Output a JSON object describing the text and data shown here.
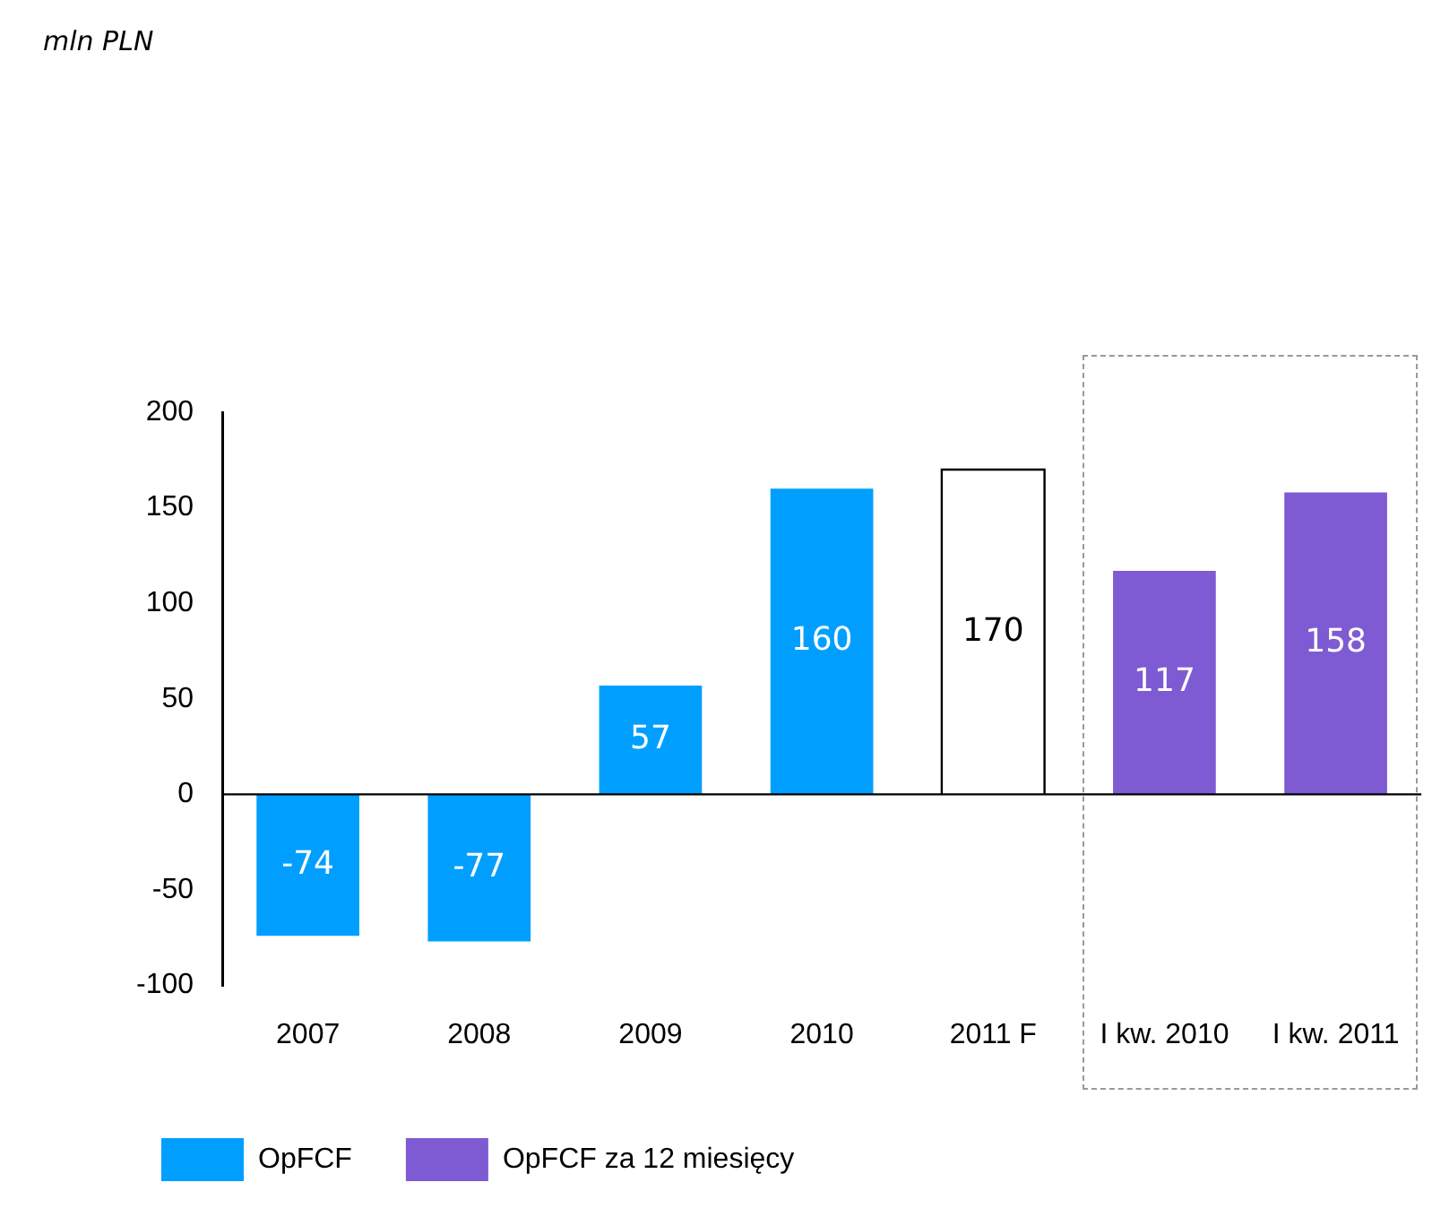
{
  "chart_data": {
    "type": "bar",
    "annotations": [
      "mln PLN"
    ],
    "categories": [
      "2007",
      "2008",
      "2009",
      "2010",
      "2011 F",
      "I kw. 2010",
      "I kw. 2011"
    ],
    "series": [
      {
        "name": "OpFCF",
        "color": "#009fff",
        "values": [
          -74,
          -77,
          57,
          160,
          null,
          null,
          null
        ]
      },
      {
        "color": "#ffffff",
        "values": [
          null,
          null,
          null,
          null,
          170,
          null,
          null
        ]
      },
      {
        "name": "OpFCF za 12 miesięcy",
        "color": "#7e5bd3",
        "values": [
          null,
          null,
          null,
          null,
          null,
          117,
          158
        ]
      }
    ],
    "stacked": true,
    "ylim": [
      -100,
      200
    ],
    "yticks": [
      -100,
      -50,
      0,
      50,
      100,
      150,
      200
    ],
    "data_labels": true,
    "legend": "bottom"
  }
}
